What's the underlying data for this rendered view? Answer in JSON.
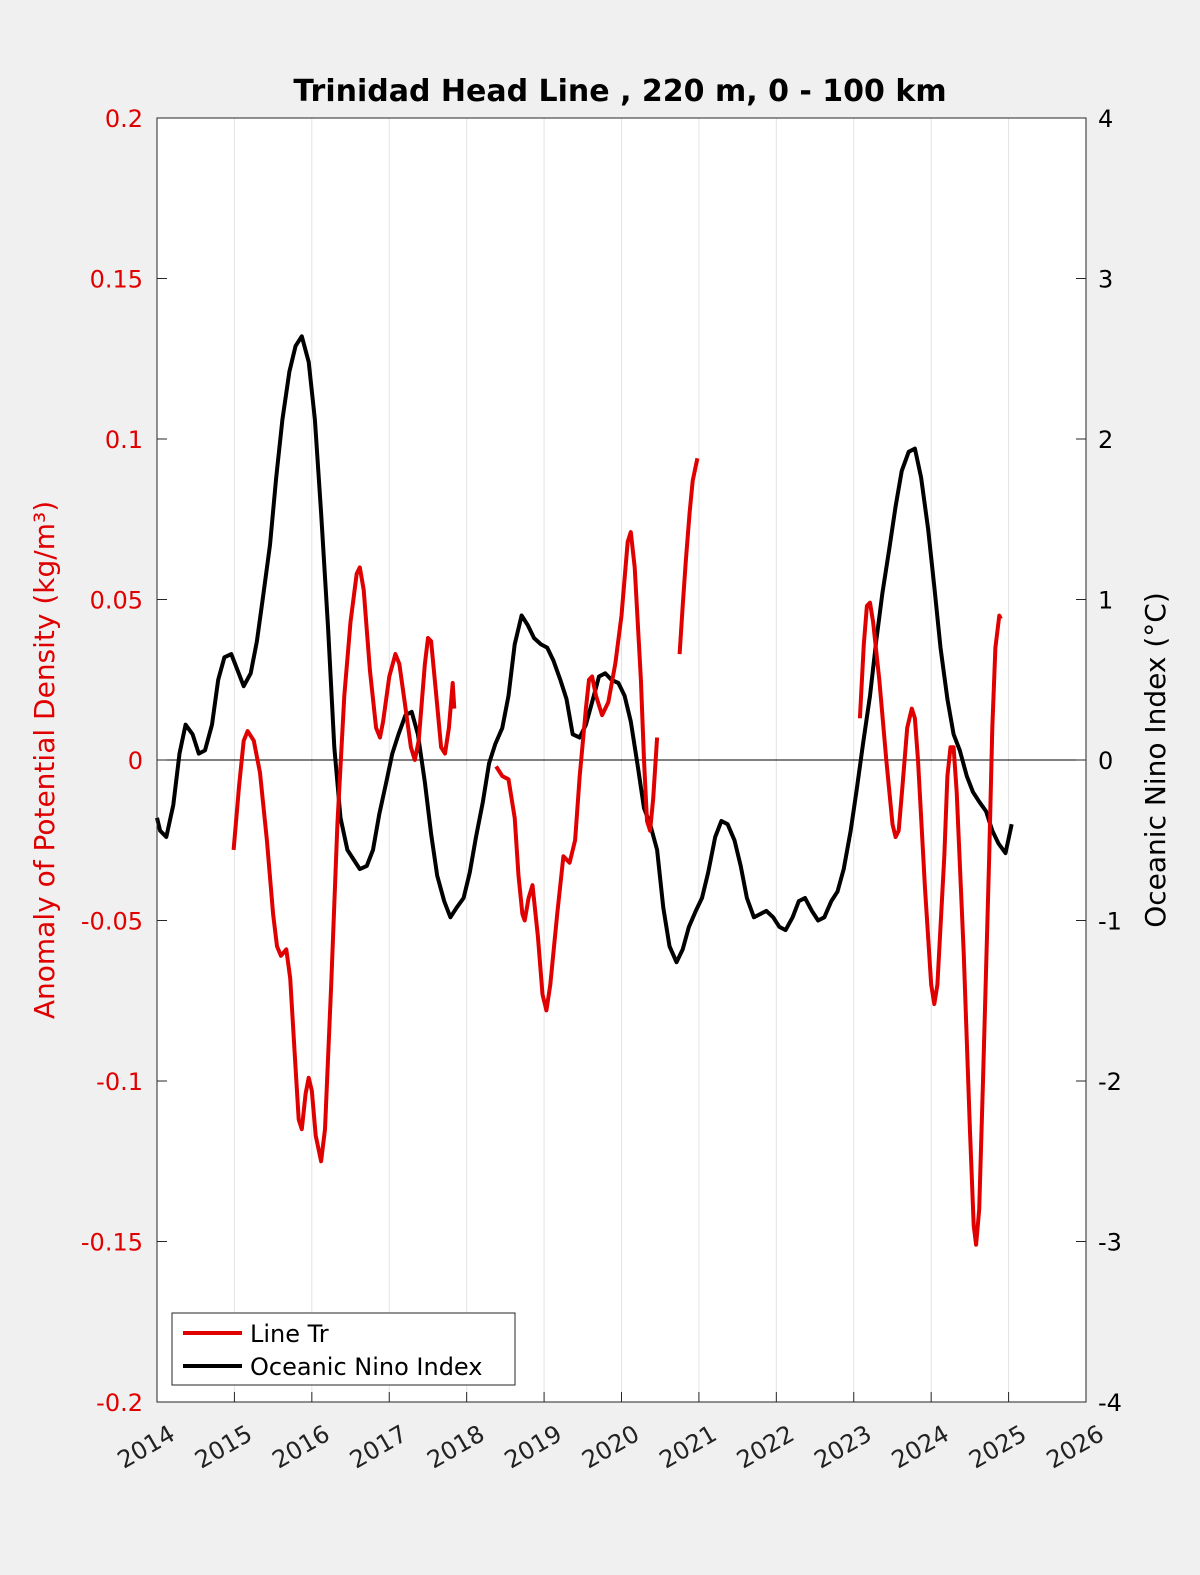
{
  "chart_data": {
    "type": "line",
    "title": "Trinidad Head Line , 220 m, 0 - 100 km",
    "xlabel": "",
    "ylabel_left": "Anomaly of Potential Density (kg/m³)",
    "ylabel_right": "Oceanic Nino Index (°C)",
    "xlim": [
      2014,
      2026
    ],
    "ylim_left": [
      -0.2,
      0.2
    ],
    "ylim_right": [
      -4,
      4
    ],
    "x_ticks": [
      "2014",
      "2015",
      "2016",
      "2017",
      "2018",
      "2019",
      "2020",
      "2021",
      "2022",
      "2023",
      "2024",
      "2025",
      "2026"
    ],
    "y_left_ticks": [
      "0.2",
      "0.15",
      "0.1",
      "0.05",
      "0",
      "-0.05",
      "-0.1",
      "-0.15",
      "-0.2"
    ],
    "y_right_ticks": [
      "4",
      "3",
      "2",
      "1",
      "0",
      "-1",
      "-2",
      "-3",
      "-4"
    ],
    "grid": "vertical",
    "legend_position": "bottom-left",
    "series": [
      {
        "name": "Line Tr",
        "axis": "left",
        "color": "#e00000",
        "segments": [
          [
            [
              2014.99,
              -0.028
            ],
            [
              2015.06,
              -0.008
            ],
            [
              2015.12,
              0.006
            ],
            [
              2015.17,
              0.009
            ],
            [
              2015.25,
              0.006
            ],
            [
              2015.33,
              -0.004
            ],
            [
              2015.42,
              -0.025
            ],
            [
              2015.5,
              -0.048
            ],
            [
              2015.55,
              -0.058
            ],
            [
              2015.6,
              -0.061
            ],
            [
              2015.67,
              -0.059
            ],
            [
              2015.72,
              -0.068
            ],
            [
              2015.78,
              -0.092
            ],
            [
              2015.83,
              -0.112
            ],
            [
              2015.87,
              -0.115
            ],
            [
              2015.92,
              -0.104
            ],
            [
              2015.96,
              -0.099
            ],
            [
              2016.0,
              -0.103
            ],
            [
              2016.05,
              -0.117
            ],
            [
              2016.12,
              -0.125
            ],
            [
              2016.17,
              -0.115
            ],
            [
              2016.25,
              -0.07
            ],
            [
              2016.33,
              -0.02
            ],
            [
              2016.42,
              0.02
            ],
            [
              2016.5,
              0.043
            ],
            [
              2016.58,
              0.058
            ],
            [
              2016.62,
              0.06
            ],
            [
              2016.67,
              0.053
            ],
            [
              2016.75,
              0.028
            ],
            [
              2016.83,
              0.01
            ],
            [
              2016.88,
              0.007
            ],
            [
              2016.92,
              0.012
            ],
            [
              2017.0,
              0.026
            ],
            [
              2017.08,
              0.033
            ],
            [
              2017.13,
              0.03
            ],
            [
              2017.2,
              0.018
            ],
            [
              2017.28,
              0.004
            ],
            [
              2017.33,
              0.0
            ],
            [
              2017.38,
              0.006
            ],
            [
              2017.46,
              0.03
            ],
            [
              2017.5,
              0.038
            ],
            [
              2017.54,
              0.037
            ],
            [
              2017.6,
              0.022
            ],
            [
              2017.67,
              0.004
            ],
            [
              2017.72,
              0.002
            ],
            [
              2017.77,
              0.01
            ],
            [
              2017.82,
              0.024
            ],
            [
              2017.84,
              0.016
            ]
          ],
          [
            [
              2018.38,
              -0.002
            ],
            [
              2018.46,
              -0.005
            ],
            [
              2018.54,
              -0.006
            ],
            [
              2018.62,
              -0.018
            ],
            [
              2018.67,
              -0.036
            ],
            [
              2018.72,
              -0.048
            ],
            [
              2018.75,
              -0.05
            ],
            [
              2018.8,
              -0.043
            ],
            [
              2018.85,
              -0.039
            ],
            [
              2018.92,
              -0.055
            ],
            [
              2018.98,
              -0.073
            ],
            [
              2019.03,
              -0.078
            ],
            [
              2019.08,
              -0.07
            ],
            [
              2019.17,
              -0.048
            ],
            [
              2019.25,
              -0.03
            ],
            [
              2019.33,
              -0.032
            ],
            [
              2019.4,
              -0.025
            ],
            [
              2019.46,
              -0.005
            ],
            [
              2019.54,
              0.016
            ],
            [
              2019.58,
              0.025
            ],
            [
              2019.62,
              0.026
            ],
            [
              2019.67,
              0.02
            ],
            [
              2019.75,
              0.014
            ],
            [
              2019.83,
              0.018
            ],
            [
              2019.92,
              0.03
            ],
            [
              2020.0,
              0.045
            ],
            [
              2020.08,
              0.068
            ],
            [
              2020.12,
              0.071
            ],
            [
              2020.17,
              0.06
            ],
            [
              2020.25,
              0.025
            ],
            [
              2020.29,
              0.0
            ],
            [
              2020.33,
              -0.019
            ],
            [
              2020.37,
              -0.022
            ],
            [
              2020.41,
              -0.012
            ],
            [
              2020.46,
              0.007
            ]
          ],
          [
            [
              2020.75,
              0.033
            ],
            [
              2020.79,
              0.048
            ],
            [
              2020.83,
              0.062
            ],
            [
              2020.88,
              0.077
            ],
            [
              2020.92,
              0.087
            ],
            [
              2020.98,
              0.094
            ]
          ],
          [
            [
              2023.08,
              0.013
            ],
            [
              2023.13,
              0.036
            ],
            [
              2023.17,
              0.048
            ],
            [
              2023.21,
              0.049
            ],
            [
              2023.25,
              0.043
            ],
            [
              2023.33,
              0.025
            ],
            [
              2023.42,
              0.0
            ],
            [
              2023.5,
              -0.02
            ],
            [
              2023.54,
              -0.024
            ],
            [
              2023.58,
              -0.022
            ],
            [
              2023.63,
              -0.008
            ],
            [
              2023.69,
              0.01
            ],
            [
              2023.75,
              0.016
            ],
            [
              2023.79,
              0.013
            ],
            [
              2023.83,
              0.0
            ],
            [
              2023.92,
              -0.04
            ],
            [
              2024.0,
              -0.07
            ],
            [
              2024.04,
              -0.076
            ],
            [
              2024.08,
              -0.07
            ],
            [
              2024.17,
              -0.03
            ],
            [
              2024.21,
              -0.005
            ],
            [
              2024.25,
              0.004
            ],
            [
              2024.29,
              0.004
            ],
            [
              2024.33,
              -0.01
            ],
            [
              2024.42,
              -0.06
            ],
            [
              2024.5,
              -0.115
            ],
            [
              2024.55,
              -0.145
            ],
            [
              2024.58,
              -0.151
            ],
            [
              2024.62,
              -0.14
            ],
            [
              2024.67,
              -0.1
            ],
            [
              2024.75,
              -0.03
            ],
            [
              2024.79,
              0.01
            ],
            [
              2024.83,
              0.035
            ],
            [
              2024.88,
              0.045
            ],
            [
              2024.9,
              0.044
            ]
          ]
        ]
      },
      {
        "name": "Oceanic Nino Index",
        "axis": "right",
        "color": "#000000",
        "segments": [
          [
            [
              2014.0,
              -0.36
            ],
            [
              2014.04,
              -0.44
            ],
            [
              2014.12,
              -0.48
            ],
            [
              2014.21,
              -0.28
            ],
            [
              2014.29,
              0.04
            ],
            [
              2014.37,
              0.22
            ],
            [
              2014.46,
              0.16
            ],
            [
              2014.54,
              0.04
            ],
            [
              2014.62,
              0.06
            ],
            [
              2014.71,
              0.22
            ],
            [
              2014.79,
              0.5
            ],
            [
              2014.87,
              0.64
            ],
            [
              2014.96,
              0.66
            ],
            [
              2015.04,
              0.56
            ],
            [
              2015.12,
              0.46
            ],
            [
              2015.21,
              0.54
            ],
            [
              2015.29,
              0.74
            ],
            [
              2015.37,
              1.02
            ],
            [
              2015.46,
              1.34
            ],
            [
              2015.54,
              1.76
            ],
            [
              2015.62,
              2.12
            ],
            [
              2015.71,
              2.42
            ],
            [
              2015.79,
              2.58
            ],
            [
              2015.87,
              2.64
            ],
            [
              2015.96,
              2.48
            ],
            [
              2016.04,
              2.12
            ],
            [
              2016.12,
              1.54
            ],
            [
              2016.21,
              0.82
            ],
            [
              2016.29,
              0.08
            ],
            [
              2016.37,
              -0.36
            ],
            [
              2016.46,
              -0.56
            ],
            [
              2016.54,
              -0.62
            ],
            [
              2016.62,
              -0.68
            ],
            [
              2016.71,
              -0.66
            ],
            [
              2016.79,
              -0.56
            ],
            [
              2016.87,
              -0.34
            ],
            [
              2016.96,
              -0.14
            ],
            [
              2017.04,
              0.04
            ],
            [
              2017.12,
              0.16
            ],
            [
              2017.21,
              0.28
            ],
            [
              2017.29,
              0.3
            ],
            [
              2017.37,
              0.16
            ],
            [
              2017.46,
              -0.14
            ],
            [
              2017.54,
              -0.46
            ],
            [
              2017.62,
              -0.72
            ],
            [
              2017.71,
              -0.88
            ],
            [
              2017.79,
              -0.98
            ],
            [
              2017.87,
              -0.92
            ],
            [
              2017.96,
              -0.86
            ],
            [
              2018.04,
              -0.7
            ],
            [
              2018.12,
              -0.48
            ],
            [
              2018.21,
              -0.26
            ],
            [
              2018.29,
              -0.02
            ],
            [
              2018.37,
              0.1
            ],
            [
              2018.46,
              0.2
            ],
            [
              2018.54,
              0.4
            ],
            [
              2018.62,
              0.72
            ],
            [
              2018.71,
              0.9
            ],
            [
              2018.79,
              0.84
            ],
            [
              2018.87,
              0.76
            ],
            [
              2018.96,
              0.72
            ],
            [
              2019.04,
              0.7
            ],
            [
              2019.12,
              0.62
            ],
            [
              2019.21,
              0.5
            ],
            [
              2019.29,
              0.38
            ],
            [
              2019.37,
              0.16
            ],
            [
              2019.46,
              0.14
            ],
            [
              2019.54,
              0.22
            ],
            [
              2019.62,
              0.36
            ],
            [
              2019.71,
              0.52
            ],
            [
              2019.79,
              0.54
            ],
            [
              2019.87,
              0.5
            ],
            [
              2019.96,
              0.48
            ],
            [
              2020.04,
              0.4
            ],
            [
              2020.12,
              0.24
            ],
            [
              2020.21,
              -0.04
            ],
            [
              2020.29,
              -0.3
            ],
            [
              2020.37,
              -0.4
            ],
            [
              2020.46,
              -0.56
            ],
            [
              2020.54,
              -0.92
            ],
            [
              2020.62,
              -1.16
            ],
            [
              2020.71,
              -1.26
            ],
            [
              2020.79,
              -1.18
            ],
            [
              2020.87,
              -1.04
            ],
            [
              2020.96,
              -0.94
            ],
            [
              2021.04,
              -0.86
            ],
            [
              2021.12,
              -0.7
            ],
            [
              2021.21,
              -0.48
            ],
            [
              2021.29,
              -0.38
            ],
            [
              2021.37,
              -0.4
            ],
            [
              2021.46,
              -0.5
            ],
            [
              2021.54,
              -0.66
            ],
            [
              2021.62,
              -0.86
            ],
            [
              2021.71,
              -0.98
            ],
            [
              2021.79,
              -0.96
            ],
            [
              2021.87,
              -0.94
            ],
            [
              2021.96,
              -0.98
            ],
            [
              2022.04,
              -1.04
            ],
            [
              2022.12,
              -1.06
            ],
            [
              2022.21,
              -0.98
            ],
            [
              2022.29,
              -0.88
            ],
            [
              2022.37,
              -0.86
            ],
            [
              2022.46,
              -0.94
            ],
            [
              2022.54,
              -1.0
            ],
            [
              2022.62,
              -0.98
            ],
            [
              2022.71,
              -0.88
            ],
            [
              2022.79,
              -0.82
            ],
            [
              2022.87,
              -0.68
            ],
            [
              2022.96,
              -0.44
            ],
            [
              2023.04,
              -0.18
            ],
            [
              2023.12,
              0.1
            ],
            [
              2023.21,
              0.4
            ],
            [
              2023.29,
              0.74
            ],
            [
              2023.37,
              1.04
            ],
            [
              2023.46,
              1.32
            ],
            [
              2023.54,
              1.58
            ],
            [
              2023.62,
              1.8
            ],
            [
              2023.71,
              1.92
            ],
            [
              2023.79,
              1.94
            ],
            [
              2023.87,
              1.76
            ],
            [
              2023.96,
              1.44
            ],
            [
              2024.04,
              1.08
            ],
            [
              2024.12,
              0.7
            ],
            [
              2024.21,
              0.38
            ],
            [
              2024.29,
              0.16
            ],
            [
              2024.37,
              0.06
            ],
            [
              2024.46,
              -0.1
            ],
            [
              2024.54,
              -0.2
            ],
            [
              2024.62,
              -0.26
            ],
            [
              2024.71,
              -0.32
            ],
            [
              2024.79,
              -0.44
            ],
            [
              2024.87,
              -0.52
            ],
            [
              2024.96,
              -0.58
            ],
            [
              2025.04,
              -0.4
            ]
          ]
        ]
      }
    ]
  }
}
